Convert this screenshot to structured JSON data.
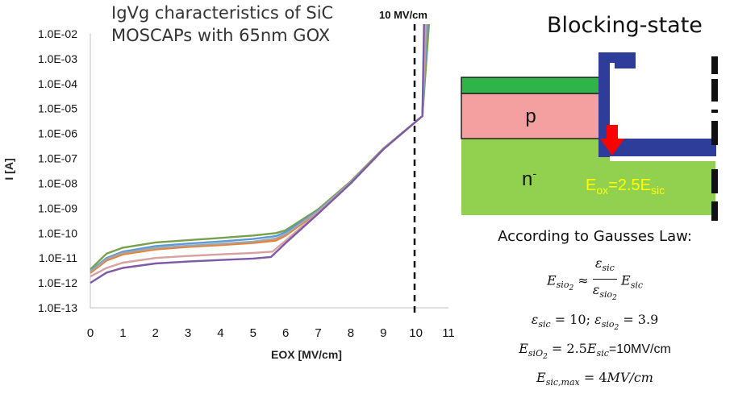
{
  "chart_data": {
    "type": "line",
    "title": "IgVg characteristics of SiC\nMOSCAPs with 65nm GOX",
    "xlabel": "EOX [MV/cm]",
    "ylabel": "I [A]",
    "xlim": [
      0,
      11
    ],
    "ylim_log10": [
      -13,
      -2
    ],
    "log_scale_y": true,
    "x_ticks": [
      "0",
      "1",
      "2",
      "3",
      "4",
      "5",
      "6",
      "7",
      "8",
      "9",
      "10",
      "11"
    ],
    "y_ticks": [
      "1.0E-13",
      "1.0E-12",
      "1.0E-11",
      "1.0E-10",
      "1.0E-09",
      "1.0E-08",
      "1.0E-07",
      "1.0E-06",
      "1.0E-05",
      "1.0E-04",
      "1.0E-03",
      "1.0E-02"
    ],
    "grid": false,
    "annotations": [
      {
        "text": "10 MV/cm",
        "x": 10
      }
    ],
    "series": [
      {
        "color": "#77a04a",
        "points": [
          [
            0,
            3.5e-12
          ],
          [
            0.5,
            1.5e-11
          ],
          [
            1,
            2.6e-11
          ],
          [
            2,
            4.2e-11
          ],
          [
            3,
            5.2e-11
          ],
          [
            4,
            6.4e-11
          ],
          [
            5,
            8e-11
          ],
          [
            5.7,
            1e-10
          ],
          [
            6,
            1.3e-10
          ],
          [
            7,
            9e-10
          ],
          [
            8,
            1.2e-08
          ],
          [
            9,
            2.5e-07
          ],
          [
            10,
            3e-06
          ],
          [
            10.2,
            5e-06
          ],
          [
            10.4,
            0.03
          ]
        ]
      },
      {
        "color": "#5b9bd5",
        "points": [
          [
            0,
            3e-12
          ],
          [
            0.5,
            1e-11
          ],
          [
            1,
            1.8e-11
          ],
          [
            2,
            3e-11
          ],
          [
            3,
            3.8e-11
          ],
          [
            4,
            4.6e-11
          ],
          [
            5,
            5.8e-11
          ],
          [
            5.7,
            7.5e-11
          ],
          [
            6,
            1.1e-10
          ],
          [
            7,
            8e-10
          ],
          [
            8,
            1.1e-08
          ],
          [
            9,
            2.4e-07
          ],
          [
            10,
            3e-06
          ],
          [
            10.2,
            5e-06
          ],
          [
            10.35,
            0.03
          ]
        ]
      },
      {
        "color": "#ed7d31",
        "points": [
          [
            0,
            2.5e-12
          ],
          [
            0.5,
            8e-12
          ],
          [
            1,
            1.4e-11
          ],
          [
            2,
            2.2e-11
          ],
          [
            3,
            2.8e-11
          ],
          [
            4,
            3.3e-11
          ],
          [
            5,
            4e-11
          ],
          [
            5.7,
            5e-11
          ],
          [
            6,
            8e-11
          ],
          [
            7,
            7e-10
          ],
          [
            8,
            1.05e-08
          ],
          [
            9,
            2.4e-07
          ],
          [
            10,
            3e-06
          ],
          [
            10.2,
            5e-06
          ],
          [
            10.3,
            0.03
          ]
        ]
      },
      {
        "color": "#a5a5a5",
        "points": [
          [
            0,
            2.8e-12
          ],
          [
            0.5,
            9e-12
          ],
          [
            1,
            1.6e-11
          ],
          [
            2,
            2.5e-11
          ],
          [
            3,
            3.1e-11
          ],
          [
            4,
            3.7e-11
          ],
          [
            5,
            4.5e-11
          ],
          [
            5.7,
            6e-11
          ],
          [
            6,
            9e-11
          ],
          [
            7,
            7.5e-10
          ],
          [
            8,
            1.1e-08
          ],
          [
            9,
            2.4e-07
          ],
          [
            10,
            3e-06
          ],
          [
            10.2,
            5e-06
          ],
          [
            10.32,
            0.03
          ]
        ]
      },
      {
        "color": "#d9a0a0",
        "points": [
          [
            0,
            1.8e-12
          ],
          [
            0.5,
            4e-12
          ],
          [
            1,
            6.5e-12
          ],
          [
            2,
            1e-11
          ],
          [
            3,
            1.2e-11
          ],
          [
            4,
            1.4e-11
          ],
          [
            5,
            1.6e-11
          ],
          [
            5.6,
            1.8e-11
          ],
          [
            6,
            5e-11
          ],
          [
            7,
            6.5e-10
          ],
          [
            8,
            1e-08
          ],
          [
            9,
            2.3e-07
          ],
          [
            10,
            3e-06
          ],
          [
            10.2,
            5e-06
          ],
          [
            10.28,
            0.03
          ]
        ]
      },
      {
        "color": "#7b5aa6",
        "points": [
          [
            0,
            1e-12
          ],
          [
            0.5,
            2.6e-12
          ],
          [
            1,
            4e-12
          ],
          [
            2,
            6e-12
          ],
          [
            3,
            7.2e-12
          ],
          [
            4,
            8.3e-12
          ],
          [
            5,
            9.5e-12
          ],
          [
            5.55,
            1.1e-11
          ],
          [
            6,
            4e-11
          ],
          [
            7,
            6e-10
          ],
          [
            8,
            1e-08
          ],
          [
            9,
            2.3e-07
          ],
          [
            10,
            3e-06
          ],
          [
            10.2,
            5e-06
          ],
          [
            10.25,
            0.03
          ]
        ]
      }
    ]
  },
  "diagram": {
    "heading": "Blocking-state",
    "p_label": "p",
    "n_label": "n",
    "n_sup": "-",
    "eox_base": "E",
    "eox_sub": "ox",
    "eox_mid": "=2.5E",
    "eox_sub2": "sic",
    "colors": {
      "n_region": "#92d050",
      "p_region": "#f4a0a0",
      "top_layer": "#2fb44a",
      "gate": "#2e3d9a",
      "arrow": "#ff0000",
      "label": "#ffff00"
    }
  },
  "equations": {
    "gauss_caption": "According to Gausses Law:",
    "line1": {
      "E": "E",
      "sub1": "si",
      "sub1b": "o",
      "sub1c": "2",
      "approx": "≈",
      "num": "ε",
      "num_sub": "sic",
      "den": "ε",
      "den_sub": "si",
      "den_subb": "o",
      "den_subc": "2",
      "tail": "E",
      "tail_sub": "sic"
    },
    "line2": {
      "a": "ε",
      "a_sub": "sic",
      "a_val": "= 10;",
      "b": "ε",
      "b_sub": "si",
      "b_subb": "o",
      "b_subc": "2",
      "b_val": "= 3.9"
    },
    "line3": {
      "a": "E",
      "a_sub": "si",
      "a_subb": "O",
      "a_subc": "2",
      "mid": "= 2.5",
      "b": "E",
      "b_sub": "sic",
      "tail": "=10MV/cm"
    },
    "line4": {
      "a": "E",
      "a_sub": "sic,max",
      "val": "= 4",
      "unit": "MV/cm"
    }
  }
}
